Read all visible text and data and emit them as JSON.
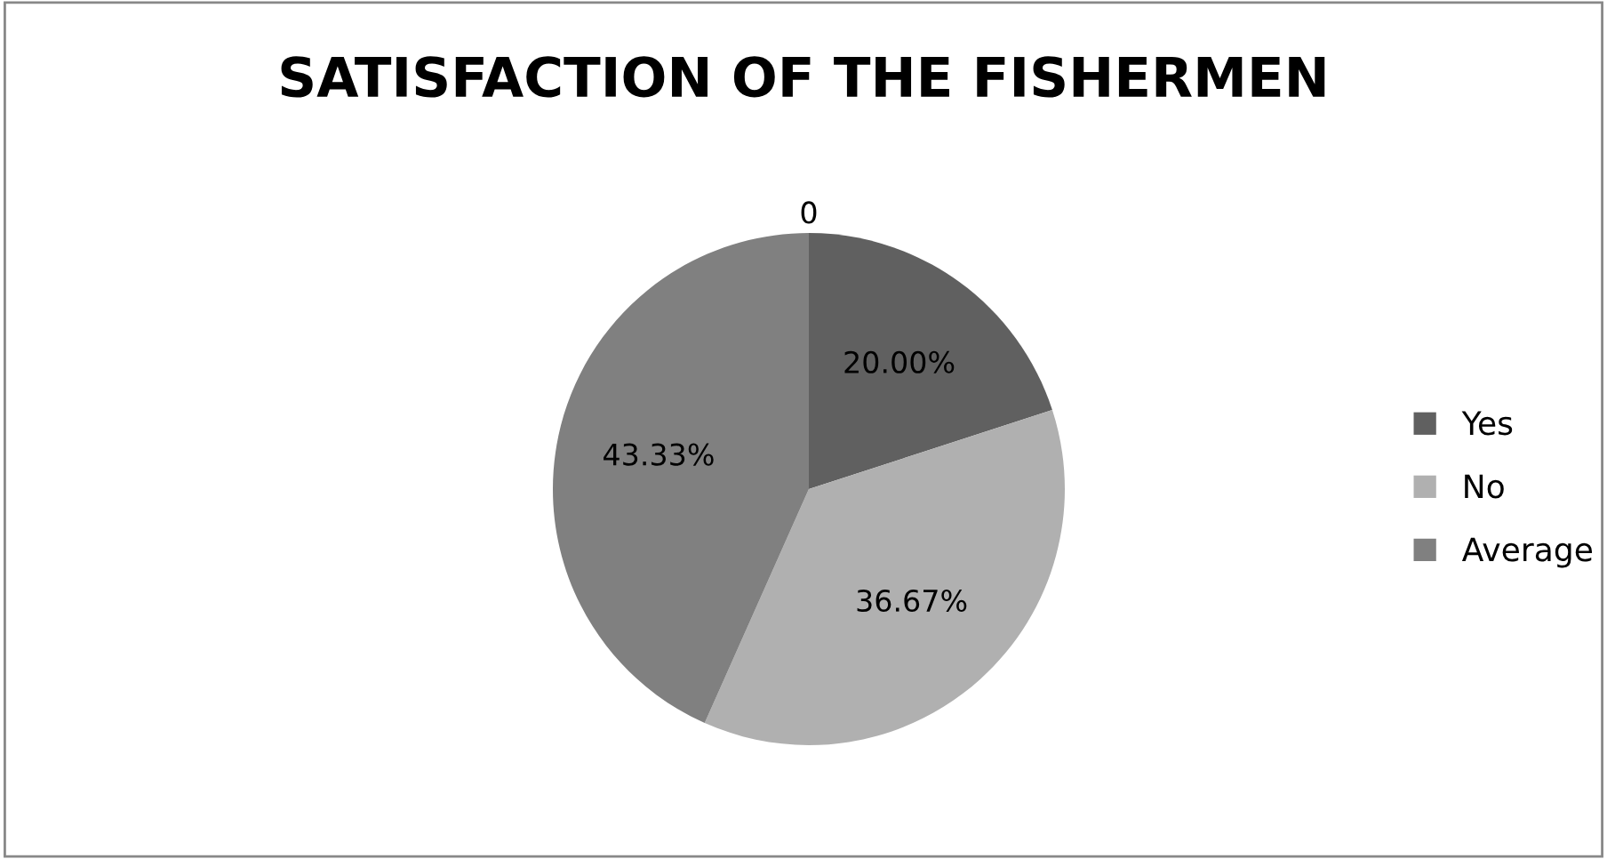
{
  "chart_data": {
    "type": "pie",
    "title": "SATISFACTION OF THE FISHERMEN",
    "categories": [
      "Yes",
      "No",
      "Average"
    ],
    "values": [
      20.0,
      36.67,
      43.33
    ],
    "colors": [
      "#606060",
      "#b0b0b0",
      "#808080"
    ],
    "value_labels": [
      "20.00%",
      "36.67%",
      "43.33%"
    ],
    "annotations": [
      "0"
    ],
    "legend": "right"
  }
}
